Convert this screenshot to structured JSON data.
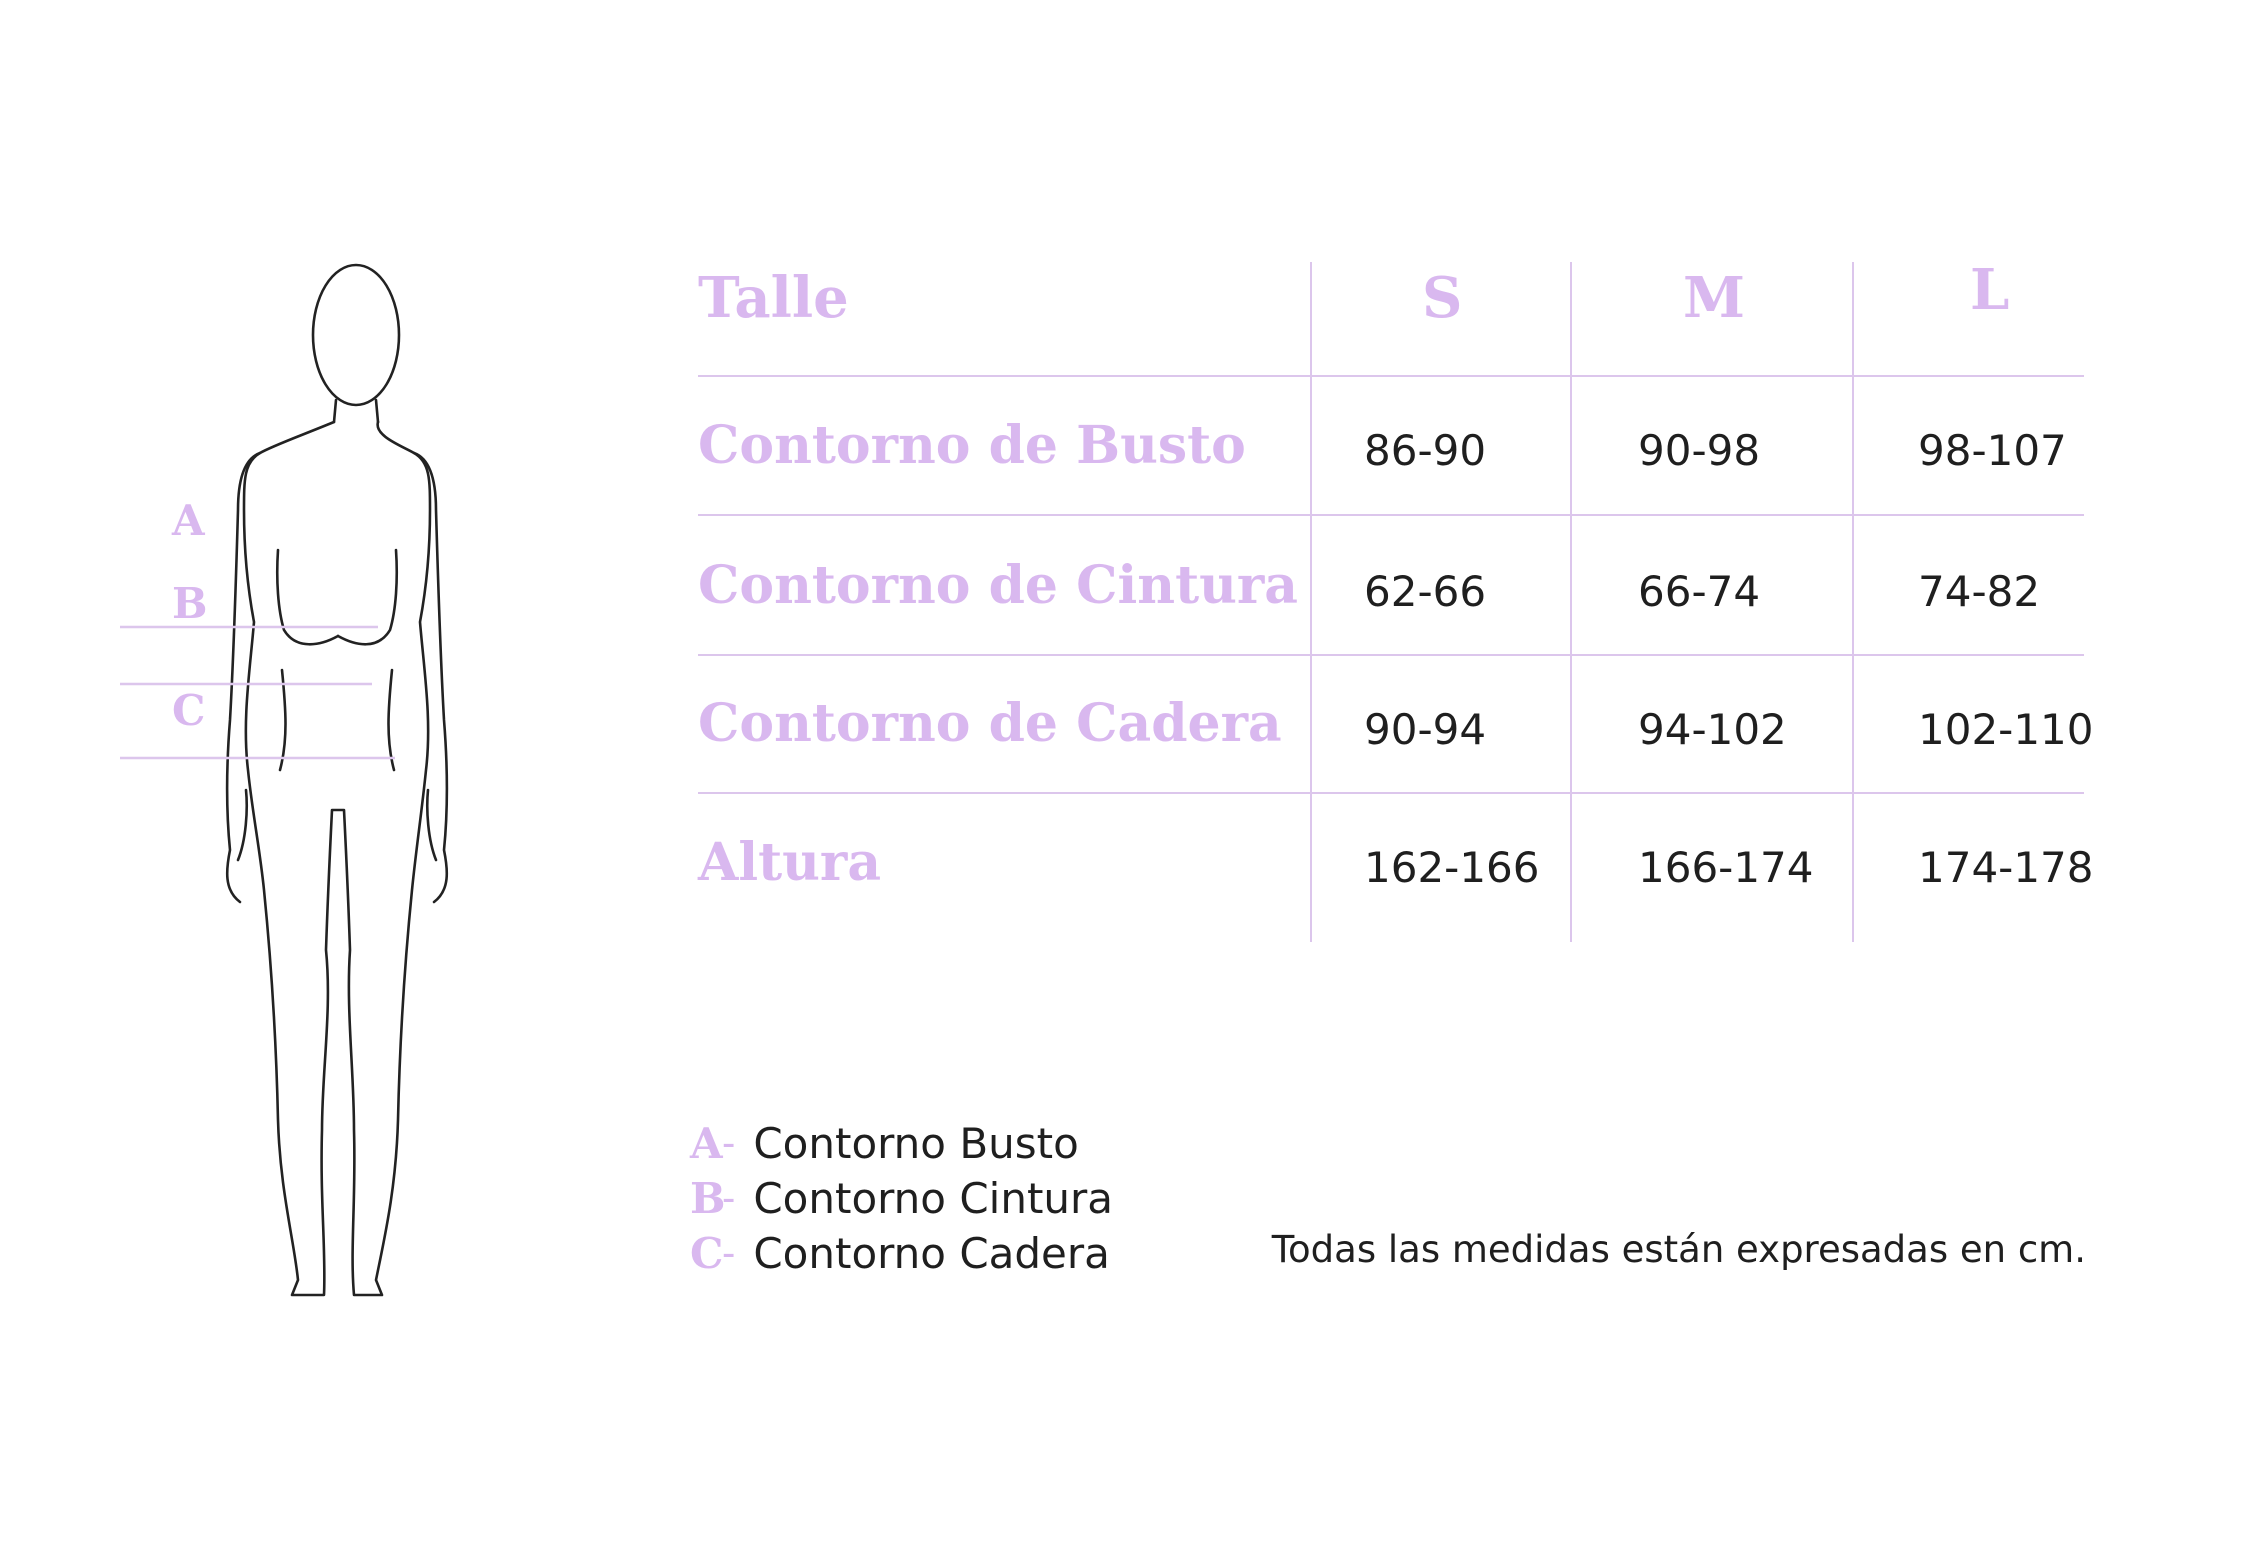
{
  "figure": {
    "markers": [
      "A",
      "B",
      "C"
    ],
    "line_color": "#dcc6ec",
    "outline_color": "#222222"
  },
  "table": {
    "header_label": "Talle",
    "sizes": [
      "S",
      "M",
      "L"
    ],
    "rows": [
      {
        "label": "Contorno de Busto",
        "values": [
          "86-90",
          "90-98",
          "98-107"
        ]
      },
      {
        "label": "Contorno de Cintura",
        "values": [
          "62-66",
          "66-74",
          "74-82"
        ]
      },
      {
        "label": "Contorno de Cadera",
        "values": [
          "90-94",
          "94-102",
          "102-110"
        ]
      },
      {
        "label": "Altura",
        "values": [
          "162-166",
          "166-174",
          "174-178"
        ]
      }
    ]
  },
  "legend": [
    {
      "key": "A",
      "label": "Contorno Busto"
    },
    {
      "key": "B",
      "label": "Contorno Cintura"
    },
    {
      "key": "C",
      "label": "Contorno Cadera"
    }
  ],
  "footnote": "Todas las medidas están expresadas en cm.",
  "colors": {
    "accent": "#d9b8ef",
    "divider": "#dcc6ec",
    "text": "#1f1f1f",
    "background": "#ffffff"
  }
}
